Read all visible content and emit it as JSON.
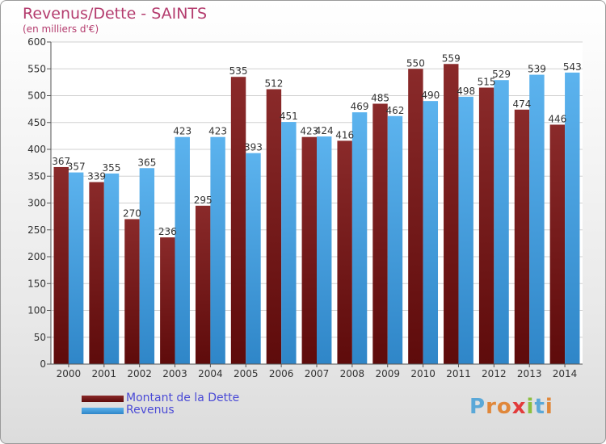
{
  "title": "Revenus/Dette - SAINTS",
  "subtitle": "(en milliers d'€)",
  "colors": {
    "dette": "#7a1a1a",
    "revenus": "#4aa3e3",
    "title": "#b43c6e",
    "legend_text": "#4a4ad6"
  },
  "logo": {
    "letters": [
      "P",
      "r",
      "o",
      "x",
      "i",
      "t",
      "i"
    ],
    "colors": [
      "#5aa8d8",
      "#e0873a",
      "#e0873a",
      "#e23b3b",
      "#8cbf3f",
      "#5aa8d8",
      "#e0873a"
    ]
  },
  "chart_data": {
    "type": "bar",
    "categories": [
      "2000",
      "2001",
      "2002",
      "2003",
      "2004",
      "2005",
      "2006",
      "2007",
      "2008",
      "2009",
      "2010",
      "2011",
      "2012",
      "2013",
      "2014"
    ],
    "series": [
      {
        "name": "Montant de la Dette",
        "values": [
          367,
          339,
          270,
          236,
          295,
          535,
          512,
          423,
          416,
          485,
          550,
          559,
          515,
          474,
          446
        ]
      },
      {
        "name": "Revenus",
        "values": [
          357,
          355,
          365,
          423,
          423,
          393,
          451,
          424,
          469,
          462,
          490,
          498,
          529,
          539,
          543
        ]
      }
    ],
    "ylim": [
      0,
      600
    ],
    "yticks": [
      0,
      50,
      100,
      150,
      200,
      250,
      300,
      350,
      400,
      450,
      500,
      550,
      600
    ],
    "grid": true,
    "legend_position": "bottom-left"
  }
}
